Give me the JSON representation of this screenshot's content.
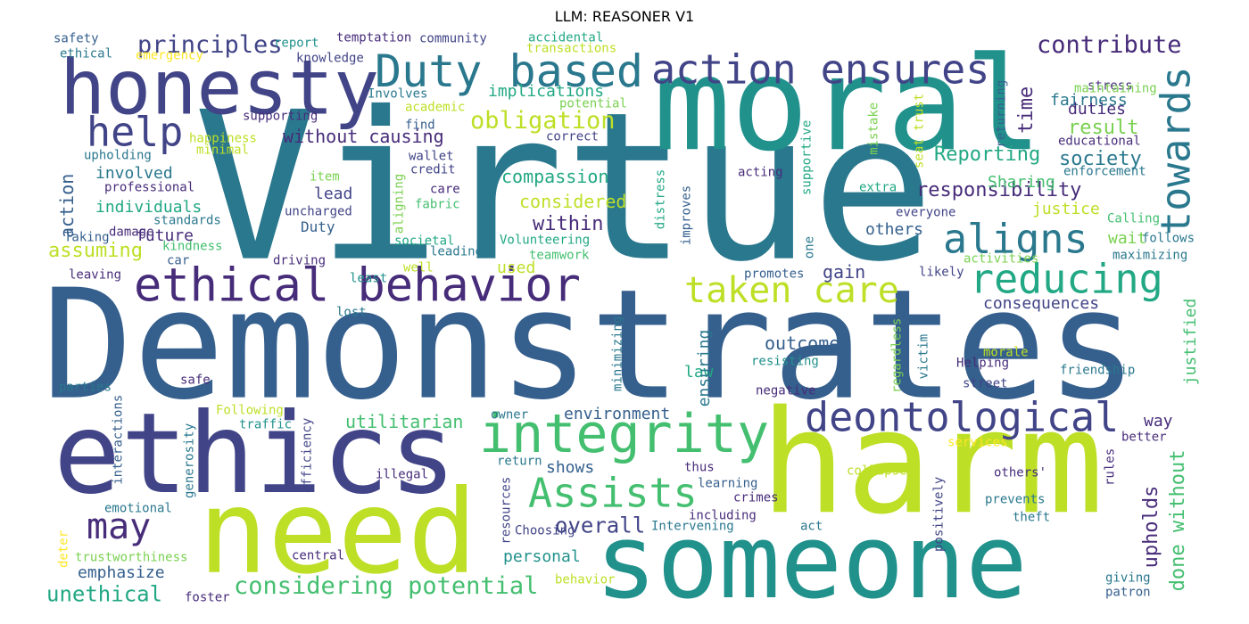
{
  "title": "LLM: REASONER V1",
  "palette": {
    "dark_purple": "#472c7a",
    "indigo": "#414487",
    "slate_blue": "#355f8d",
    "steel_blue": "#2a788e",
    "teal": "#21918c",
    "green_teal": "#22a884",
    "green": "#44bf70",
    "light_green": "#7ad151",
    "yellow_green": "#bddf26",
    "yellow": "#fde725"
  },
  "words": [
    {
      "text": "Virtue",
      "color": "#2a788e"
    },
    {
      "text": "Demonstrates",
      "color": "#355f8d"
    },
    {
      "text": "moral",
      "color": "#21918c"
    },
    {
      "text": "ethics",
      "color": "#414487"
    },
    {
      "text": "harm",
      "color": "#bddf26"
    },
    {
      "text": "need",
      "color": "#bddf26"
    },
    {
      "text": "someone",
      "color": "#21918c"
    },
    {
      "text": "honesty",
      "color": "#414487"
    },
    {
      "text": "Duty based",
      "color": "#2a788e"
    },
    {
      "text": "ethical behavior",
      "color": "#472c7a"
    },
    {
      "text": "action ensures",
      "color": "#414487"
    },
    {
      "text": "integrity",
      "color": "#44bf70"
    },
    {
      "text": "deontological",
      "color": "#414487"
    },
    {
      "text": "aligns",
      "color": "#2a788e"
    },
    {
      "text": "towards",
      "color": "#2a788e"
    },
    {
      "text": "reducing",
      "color": "#22a884"
    },
    {
      "text": "taken care",
      "color": "#bddf26"
    },
    {
      "text": "Assists",
      "color": "#44bf70"
    },
    {
      "text": "help",
      "color": "#414487"
    },
    {
      "text": "may",
      "color": "#472c7a"
    },
    {
      "text": "principles",
      "color": "#414487"
    },
    {
      "text": "contribute",
      "color": "#472c7a"
    },
    {
      "text": "considering potential",
      "color": "#44bf70"
    },
    {
      "text": "obligation",
      "color": "#bddf26"
    },
    {
      "text": "without causing",
      "color": "#472c7a"
    },
    {
      "text": "Reporting",
      "color": "#22a884"
    },
    {
      "text": "society",
      "color": "#2a788e"
    },
    {
      "text": "result",
      "color": "#7ad151"
    },
    {
      "text": "responsibility",
      "color": "#472c7a"
    },
    {
      "text": "unethical",
      "color": "#22a884"
    },
    {
      "text": "overall",
      "color": "#414487"
    },
    {
      "text": "upholds",
      "color": "#472c7a"
    },
    {
      "text": "done without",
      "color": "#44bf70"
    },
    {
      "text": "assuming",
      "color": "#bddf26"
    },
    {
      "text": "individuals",
      "color": "#22a884"
    },
    {
      "text": "involved",
      "color": "#2a788e"
    },
    {
      "text": "action",
      "color": "#355f8d"
    },
    {
      "text": "compassion",
      "color": "#22a884"
    },
    {
      "text": "considered",
      "color": "#bddf26"
    },
    {
      "text": "within",
      "color": "#472c7a"
    },
    {
      "text": "implications",
      "color": "#22a884"
    },
    {
      "text": "fairness",
      "color": "#2a788e"
    },
    {
      "text": "time",
      "color": "#472c7a"
    },
    {
      "text": "duties",
      "color": "#472c7a"
    },
    {
      "text": "Sharing",
      "color": "#44bf70"
    },
    {
      "text": "justice",
      "color": "#bddf26"
    },
    {
      "text": "utilitarian",
      "color": "#44bf70"
    },
    {
      "text": "environment",
      "color": "#355f8d"
    },
    {
      "text": "outcomes",
      "color": "#355f8d"
    },
    {
      "text": "law",
      "color": "#22a884"
    },
    {
      "text": "ensuring",
      "color": "#2a788e"
    },
    {
      "text": "consequences",
      "color": "#414487"
    },
    {
      "text": "others",
      "color": "#355f8d"
    },
    {
      "text": "gain",
      "color": "#414487"
    },
    {
      "text": "wait",
      "color": "#7ad151"
    },
    {
      "text": "justified",
      "color": "#44bf70"
    },
    {
      "text": "way",
      "color": "#472c7a"
    },
    {
      "text": "emphasize",
      "color": "#355f8d"
    },
    {
      "text": "personal",
      "color": "#21918c"
    },
    {
      "text": "shows",
      "color": "#355f8d"
    },
    {
      "text": "used",
      "color": "#bddf26"
    },
    {
      "text": "future",
      "color": "#472c7a"
    },
    {
      "text": "lead",
      "color": "#414487"
    },
    {
      "text": "Duty",
      "color": "#355f8d"
    },
    {
      "text": "improves",
      "color": "#355f8d"
    },
    {
      "text": "safety",
      "color": "#355f8d"
    },
    {
      "text": "ethical",
      "color": "#2a788e"
    },
    {
      "text": "emergency",
      "color": "#fde725"
    },
    {
      "text": "report",
      "color": "#21918c"
    },
    {
      "text": "knowledge",
      "color": "#414487"
    },
    {
      "text": "temptation",
      "color": "#472c7a"
    },
    {
      "text": "community",
      "color": "#414487"
    },
    {
      "text": "accidental",
      "color": "#22a884"
    },
    {
      "text": "transactions",
      "color": "#bddf26"
    },
    {
      "text": "Involves",
      "color": "#2a788e"
    },
    {
      "text": "academic",
      "color": "#bddf26"
    },
    {
      "text": "potential",
      "color": "#7ad151"
    },
    {
      "text": "supporting",
      "color": "#472c7a"
    },
    {
      "text": "find",
      "color": "#355f8d"
    },
    {
      "text": "correct",
      "color": "#414487"
    },
    {
      "text": "happiness",
      "color": "#bddf26"
    },
    {
      "text": "minimal",
      "color": "#bddf26"
    },
    {
      "text": "wallet",
      "color": "#414487"
    },
    {
      "text": "upholding",
      "color": "#2a788e"
    },
    {
      "text": "credit",
      "color": "#414487"
    },
    {
      "text": "professional",
      "color": "#472c7a"
    },
    {
      "text": "item",
      "color": "#7ad151"
    },
    {
      "text": "care",
      "color": "#472c7a"
    },
    {
      "text": "fabric",
      "color": "#44bf70"
    },
    {
      "text": "uncharged",
      "color": "#414487"
    },
    {
      "text": "aligning",
      "color": "#7ad151"
    },
    {
      "text": "standards",
      "color": "#2a788e"
    },
    {
      "text": "damage",
      "color": "#472c7a"
    },
    {
      "text": "Taking",
      "color": "#355f8d"
    },
    {
      "text": "kindness",
      "color": "#44bf70"
    },
    {
      "text": "car",
      "color": "#355f8d"
    },
    {
      "text": "societal",
      "color": "#22a884"
    },
    {
      "text": "leading",
      "color": "#2a788e"
    },
    {
      "text": "Volunteering",
      "color": "#22a884"
    },
    {
      "text": "teamwork",
      "color": "#44bf70"
    },
    {
      "text": "driving",
      "color": "#472c7a"
    },
    {
      "text": "well",
      "color": "#bddf26"
    },
    {
      "text": "leaving",
      "color": "#472c7a"
    },
    {
      "text": "least",
      "color": "#21918c"
    },
    {
      "text": "lost",
      "color": "#2a788e"
    },
    {
      "text": "promotes",
      "color": "#355f8d"
    },
    {
      "text": "safe",
      "color": "#472c7a"
    },
    {
      "text": "Following",
      "color": "#bddf26"
    },
    {
      "text": "traffic",
      "color": "#21918c"
    },
    {
      "text": "parties",
      "color": "#2a788e"
    },
    {
      "text": "interactions",
      "color": "#355f8d"
    },
    {
      "text": "generosity",
      "color": "#2a788e"
    },
    {
      "text": "efficiency",
      "color": "#414487"
    },
    {
      "text": "illegal",
      "color": "#472c7a"
    },
    {
      "text": "owner",
      "color": "#2a788e"
    },
    {
      "text": "return",
      "color": "#2a788e"
    },
    {
      "text": "resources",
      "color": "#414487"
    },
    {
      "text": "emotional",
      "color": "#2a788e"
    },
    {
      "text": "deter",
      "color": "#fde725"
    },
    {
      "text": "trustworthiness",
      "color": "#7ad151"
    },
    {
      "text": "central",
      "color": "#472c7a"
    },
    {
      "text": "foster",
      "color": "#472c7a"
    },
    {
      "text": "Choosing",
      "color": "#414487"
    },
    {
      "text": "behavior",
      "color": "#bddf26"
    },
    {
      "text": "Intervening",
      "color": "#2a788e"
    },
    {
      "text": "including",
      "color": "#472c7a"
    },
    {
      "text": "crimes",
      "color": "#472c7a"
    },
    {
      "text": "learning",
      "color": "#355f8d"
    },
    {
      "text": "thus",
      "color": "#472c7a"
    },
    {
      "text": "act",
      "color": "#2a788e"
    },
    {
      "text": "collapses",
      "color": "#bddf26"
    },
    {
      "text": "positively",
      "color": "#414487"
    },
    {
      "text": "services",
      "color": "#fde725"
    },
    {
      "text": "others'",
      "color": "#472c7a"
    },
    {
      "text": "prevents",
      "color": "#2a788e"
    },
    {
      "text": "theft",
      "color": "#2a788e"
    },
    {
      "text": "rules",
      "color": "#472c7a"
    },
    {
      "text": "giving",
      "color": "#2a788e"
    },
    {
      "text": "patron",
      "color": "#355f8d"
    },
    {
      "text": "better",
      "color": "#472c7a"
    },
    {
      "text": "street",
      "color": "#414487"
    },
    {
      "text": "Helping",
      "color": "#472c7a"
    },
    {
      "text": "victim",
      "color": "#2a788e"
    },
    {
      "text": "regardless",
      "color": "#7ad151"
    },
    {
      "text": "friendship",
      "color": "#2a788e"
    },
    {
      "text": "morale",
      "color": "#bddf26"
    },
    {
      "text": "resisting",
      "color": "#21918c"
    },
    {
      "text": "negative",
      "color": "#472c7a"
    },
    {
      "text": "minimizing",
      "color": "#2a788e"
    },
    {
      "text": "likely",
      "color": "#414487"
    },
    {
      "text": "one",
      "color": "#2a788e"
    },
    {
      "text": "activities",
      "color": "#7ad151"
    },
    {
      "text": "maximizing",
      "color": "#2a788e"
    },
    {
      "text": "follows",
      "color": "#2a788e"
    },
    {
      "text": "Calling",
      "color": "#44bf70"
    },
    {
      "text": "everyone",
      "color": "#414487"
    },
    {
      "text": "extra",
      "color": "#22a884"
    },
    {
      "text": "acting",
      "color": "#472c7a"
    },
    {
      "text": "supportive",
      "color": "#22a884"
    },
    {
      "text": "distress",
      "color": "#22a884"
    },
    {
      "text": "educational",
      "color": "#472c7a"
    },
    {
      "text": "enforcement",
      "color": "#2a788e"
    },
    {
      "text": "mistake",
      "color": "#7ad151"
    },
    {
      "text": "seat trust",
      "color": "#bddf26"
    },
    {
      "text": "returning",
      "color": "#355f8d"
    },
    {
      "text": "stress",
      "color": "#472c7a"
    },
    {
      "text": "maintaining",
      "color": "#7ad151"
    }
  ]
}
